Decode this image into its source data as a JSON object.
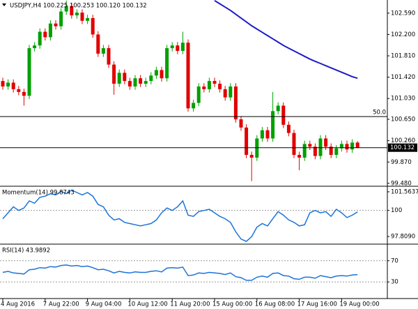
{
  "chart_data": [
    {
      "type": "candlestick",
      "title": "USDJPY,H4 100.225 100.253 100.120 100.132",
      "categories": [
        "4 Aug 2016",
        null,
        null,
        null,
        null,
        null,
        null,
        null,
        "7 Aug 22:00",
        null,
        null,
        null,
        null,
        null,
        null,
        null,
        "9 Aug 04:00",
        null,
        null,
        null,
        null,
        null,
        null,
        null,
        "10 Aug 12:00",
        null,
        null,
        null,
        null,
        null,
        null,
        null,
        "11 Aug 20:00",
        null,
        null,
        null,
        null,
        null,
        null,
        null,
        "15 Aug 00:00",
        null,
        null,
        null,
        null,
        null,
        null,
        null,
        "16 Aug 08:00",
        null,
        null,
        null,
        null,
        null,
        null,
        null,
        "17 Aug 16:00",
        null,
        null,
        null,
        null,
        null,
        null,
        null,
        "19 Aug 00:00",
        null,
        null,
        null
      ],
      "open": [
        101.35,
        101.25,
        101.32,
        101.2,
        101.15,
        101.08,
        101.95,
        102.0,
        102.25,
        102.15,
        102.4,
        102.35,
        102.62,
        102.72,
        102.55,
        102.6,
        102.45,
        102.5,
        102.2,
        101.85,
        101.95,
        101.65,
        101.3,
        101.5,
        101.35,
        101.25,
        101.4,
        101.3,
        101.35,
        101.45,
        101.55,
        101.4,
        101.95,
        102.0,
        101.9,
        102.05,
        100.85,
        100.95,
        101.25,
        101.2,
        101.35,
        101.3,
        101.2,
        101.05,
        101.25,
        100.65,
        100.5,
        100.0,
        99.95,
        100.3,
        100.45,
        100.3,
        100.8,
        100.9,
        100.55,
        100.4,
        100.0,
        99.95,
        100.2,
        100.15,
        99.98,
        100.3,
        100.15,
        100.0,
        100.12,
        100.2,
        100.1,
        100.225
      ],
      "high": [
        101.41,
        101.38,
        101.38,
        101.26,
        101.21,
        102.01,
        102.06,
        102.31,
        102.31,
        102.46,
        102.46,
        102.68,
        102.82,
        102.78,
        102.66,
        102.66,
        102.56,
        102.56,
        102.26,
        102.01,
        102.01,
        101.71,
        101.56,
        101.56,
        101.41,
        101.46,
        101.46,
        101.41,
        101.51,
        101.61,
        101.61,
        102.01,
        102.06,
        102.06,
        102.25,
        102.11,
        101.01,
        101.31,
        101.31,
        101.41,
        101.41,
        101.36,
        101.26,
        101.31,
        101.31,
        100.71,
        100.56,
        100.06,
        100.36,
        100.51,
        100.51,
        101.15,
        100.96,
        100.96,
        100.61,
        100.46,
        100.06,
        100.26,
        100.26,
        100.21,
        100.36,
        100.36,
        100.21,
        100.18,
        100.26,
        100.26,
        100.285,
        100.253
      ],
      "low": [
        101.19,
        101.19,
        101.14,
        101.09,
        100.9,
        101.02,
        101.89,
        101.94,
        102.09,
        102.09,
        102.29,
        102.29,
        102.56,
        102.49,
        102.49,
        102.39,
        102.39,
        102.14,
        101.79,
        101.79,
        101.59,
        101.1,
        101.24,
        101.29,
        101.19,
        101.19,
        101.24,
        101.24,
        101.29,
        101.39,
        101.34,
        101.34,
        101.89,
        101.84,
        101.84,
        100.79,
        100.79,
        100.89,
        101.14,
        101.14,
        101.24,
        101.14,
        100.99,
        100.99,
        100.59,
        100.44,
        99.94,
        99.52,
        99.89,
        100.24,
        100.24,
        100.24,
        100.74,
        100.49,
        100.34,
        99.94,
        99.72,
        99.89,
        100.09,
        99.92,
        99.92,
        100.09,
        99.94,
        99.94,
        100.06,
        100.04,
        100.04,
        100.12
      ],
      "close": [
        101.25,
        101.32,
        101.2,
        101.15,
        101.08,
        101.95,
        102.0,
        102.25,
        102.15,
        102.4,
        102.35,
        102.62,
        102.72,
        102.55,
        102.6,
        102.45,
        102.5,
        102.2,
        101.85,
        101.95,
        101.65,
        101.3,
        101.5,
        101.35,
        101.25,
        101.4,
        101.3,
        101.35,
        101.45,
        101.55,
        101.4,
        101.95,
        102.0,
        101.9,
        102.05,
        100.85,
        100.95,
        101.25,
        101.2,
        101.35,
        101.3,
        101.2,
        101.05,
        101.25,
        100.65,
        100.5,
        100.0,
        99.95,
        100.3,
        100.45,
        100.3,
        100.8,
        100.9,
        100.55,
        100.4,
        100.0,
        99.95,
        100.2,
        100.15,
        99.98,
        100.3,
        100.15,
        100.0,
        100.12,
        100.2,
        100.1,
        100.225,
        100.132
      ],
      "up_color": "#00a000",
      "down_color": "#e00000",
      "moving_average": {
        "color": "#1c1cc8",
        "values": [
          null,
          null,
          null,
          null,
          null,
          null,
          null,
          null,
          null,
          null,
          null,
          null,
          null,
          null,
          null,
          null,
          null,
          null,
          null,
          null,
          null,
          null,
          null,
          null,
          null,
          null,
          null,
          null,
          null,
          null,
          null,
          null,
          null,
          null,
          null,
          null,
          null,
          null,
          null,
          null,
          102.82,
          102.76,
          102.7,
          102.64,
          102.57,
          102.5,
          102.43,
          102.36,
          102.3,
          102.24,
          102.18,
          102.12,
          102.06,
          102.0,
          101.95,
          101.9,
          101.85,
          101.8,
          101.75,
          101.71,
          101.67,
          101.63,
          101.59,
          101.55,
          101.51,
          101.47,
          101.43,
          101.4
        ]
      },
      "level_label": "50.0",
      "level_price": 100.7,
      "current_price": 100.132,
      "ylim": [
        99.44,
        102.83
      ],
      "yticks": [
        {
          "value": 102.59,
          "label": "102.590"
        },
        {
          "value": 102.2,
          "label": "102.200"
        },
        {
          "value": 101.81,
          "label": "101.810"
        },
        {
          "value": 101.42,
          "label": "101.420"
        },
        {
          "value": 101.03,
          "label": "101.030"
        },
        {
          "value": 100.65,
          "label": "100.650"
        },
        {
          "value": 100.26,
          "label": "100.260"
        },
        {
          "value": 99.87,
          "label": "99.870"
        },
        {
          "value": 99.48,
          "label": "99.480"
        }
      ]
    },
    {
      "type": "line",
      "title": "Momentum(14) 99.8743",
      "color": "#1a73d9",
      "values": [
        99.3,
        99.8,
        100.3,
        100.0,
        100.2,
        100.8,
        100.6,
        101.1,
        101.2,
        101.4,
        101.3,
        101.6,
        101.4,
        101.7,
        101.5,
        101.3,
        101.5,
        101.2,
        100.5,
        100.3,
        99.6,
        99.2,
        99.3,
        99.0,
        98.9,
        98.8,
        98.7,
        98.8,
        98.9,
        99.2,
        99.8,
        100.2,
        100.0,
        100.3,
        100.8,
        99.6,
        99.5,
        99.9,
        100.0,
        100.1,
        99.8,
        99.5,
        99.3,
        99.0,
        98.2,
        97.6,
        97.4,
        97.8,
        98.6,
        98.9,
        98.7,
        99.3,
        99.9,
        99.6,
        99.2,
        99.0,
        98.7,
        98.8,
        99.8,
        100.0,
        99.8,
        99.9,
        99.5,
        100.1,
        99.8,
        99.4,
        99.6,
        99.8743
      ],
      "ylim": [
        97.23,
        101.97
      ],
      "yticks": [
        101.5637,
        100,
        {
          "value": 97.809,
          "label": "97.8090"
        }
      ],
      "reference_ticks": [
        100
      ]
    },
    {
      "type": "line",
      "title": "RSI(14) 43.9892",
      "color": "#1a73d9",
      "values": [
        48,
        50,
        47,
        46,
        45,
        53,
        54,
        57,
        56,
        59,
        58,
        61,
        62,
        60,
        61,
        59,
        60,
        57,
        53,
        54,
        51,
        47,
        50,
        48,
        47,
        49,
        48,
        48,
        50,
        51,
        49,
        56,
        57,
        56,
        58,
        42,
        43,
        47,
        46,
        48,
        47,
        46,
        44,
        47,
        40,
        38,
        33,
        33,
        39,
        41,
        39,
        46,
        47,
        42,
        41,
        36,
        35,
        39,
        39,
        37,
        42,
        40,
        38,
        41,
        42,
        41,
        43,
        43.9892
      ],
      "ylim": [
        0,
        100
      ],
      "yticks": [
        70,
        30
      ],
      "reference_ticks": [
        70,
        30
      ]
    }
  ]
}
